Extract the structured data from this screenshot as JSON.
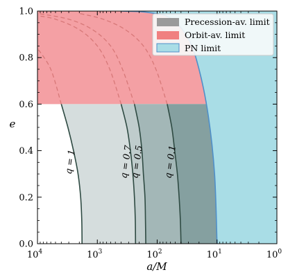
{
  "chart_data": {
    "type": "area",
    "xlabel": "a/M",
    "ylabel": "e",
    "x_scale": "log",
    "x_reversed": true,
    "xlim": [
      10000,
      1
    ],
    "ylim": [
      0,
      1
    ],
    "x_ticks": [
      {
        "value": 10000,
        "base": "10",
        "exp": "4"
      },
      {
        "value": 1000,
        "base": "10",
        "exp": "3"
      },
      {
        "value": 100,
        "base": "10",
        "exp": "2"
      },
      {
        "value": 10,
        "base": "10",
        "exp": "1"
      },
      {
        "value": 1,
        "base": "10",
        "exp": "0"
      }
    ],
    "y_ticks": [
      "0.0",
      "0.2",
      "0.4",
      "0.6",
      "0.8",
      "1.0"
    ],
    "y_tick_values": [
      0,
      0.2,
      0.4,
      0.6,
      0.8,
      1.0
    ],
    "legend_position": "top-right",
    "legend": [
      {
        "label": "Precession-av. limit",
        "color": "#9a9a9a"
      },
      {
        "label": "Orbit-av. limit",
        "color": "#f08080"
      },
      {
        "label": "PN limit",
        "color": "#a9dde6"
      }
    ],
    "orbit_av_limit_e": 0.6,
    "pn_limit": {
      "color": "#a9dde6",
      "edge_color": "#4f8fc8",
      "points": [
        {
          "x": 10,
          "e": 0.0
        },
        {
          "x": 11,
          "e": 0.3
        },
        {
          "x": 14,
          "e": 0.55
        },
        {
          "x": 20,
          "e": 0.75
        },
        {
          "x": 30,
          "e": 0.88
        },
        {
          "x": 60,
          "e": 0.97
        },
        {
          "x": 150,
          "e": 0.995
        },
        {
          "x": 400,
          "e": 1.0
        }
      ]
    },
    "precession_curves": [
      {
        "q_label": "q = 1",
        "fill": "#d5dddd",
        "points": [
          {
            "x": 1800,
            "e": 0.0
          },
          {
            "x": 1820,
            "e": 0.1
          },
          {
            "x": 1900,
            "e": 0.2
          },
          {
            "x": 2100,
            "e": 0.3
          },
          {
            "x": 2500,
            "e": 0.4
          },
          {
            "x": 3100,
            "e": 0.5
          },
          {
            "x": 4000,
            "e": 0.6
          }
        ]
      },
      {
        "q_label": "q = 0.7",
        "fill": "#bfcccc",
        "points": [
          {
            "x": 230,
            "e": 0.0
          },
          {
            "x": 232,
            "e": 0.1
          },
          {
            "x": 240,
            "e": 0.2
          },
          {
            "x": 255,
            "e": 0.3
          },
          {
            "x": 280,
            "e": 0.4
          },
          {
            "x": 320,
            "e": 0.5
          },
          {
            "x": 400,
            "e": 0.6
          }
        ]
      },
      {
        "q_label": "q = 0.5",
        "fill": "#a3b7b7",
        "points": [
          {
            "x": 155,
            "e": 0.0
          },
          {
            "x": 157,
            "e": 0.1
          },
          {
            "x": 160,
            "e": 0.2
          },
          {
            "x": 170,
            "e": 0.3
          },
          {
            "x": 180,
            "e": 0.4
          },
          {
            "x": 200,
            "e": 0.5
          },
          {
            "x": 240,
            "e": 0.6
          }
        ]
      },
      {
        "q_label": "q = 0.1",
        "fill": "#85a0a0",
        "points": [
          {
            "x": 40,
            "e": 0.0
          },
          {
            "x": 41,
            "e": 0.1
          },
          {
            "x": 43,
            "e": 0.2
          },
          {
            "x": 46,
            "e": 0.3
          },
          {
            "x": 51,
            "e": 0.4
          },
          {
            "x": 57,
            "e": 0.5
          },
          {
            "x": 68,
            "e": 0.6
          }
        ]
      }
    ],
    "dashed_curves": [
      [
        {
          "x": 4000,
          "e": 0.6
        },
        {
          "x": 6000,
          "e": 0.75
        },
        {
          "x": 10000,
          "e": 0.84
        }
      ],
      [
        {
          "x": 400,
          "e": 0.6
        },
        {
          "x": 620,
          "e": 0.75
        },
        {
          "x": 1000,
          "e": 0.85
        },
        {
          "x": 2000,
          "e": 0.92
        },
        {
          "x": 5000,
          "e": 0.965
        },
        {
          "x": 10000,
          "e": 0.98
        }
      ],
      [
        {
          "x": 240,
          "e": 0.6
        },
        {
          "x": 380,
          "e": 0.75
        },
        {
          "x": 600,
          "e": 0.85
        },
        {
          "x": 1200,
          "e": 0.92
        },
        {
          "x": 3000,
          "e": 0.965
        },
        {
          "x": 10000,
          "e": 0.99
        }
      ],
      [
        {
          "x": 68,
          "e": 0.6
        },
        {
          "x": 105,
          "e": 0.75
        },
        {
          "x": 170,
          "e": 0.85
        },
        {
          "x": 340,
          "e": 0.92
        },
        {
          "x": 800,
          "e": 0.965
        },
        {
          "x": 2000,
          "e": 0.99
        }
      ]
    ],
    "orbit_fill_color": "#f4a0a4",
    "dashed_color": "#d77878",
    "curve_line_color": "#2e4a42"
  }
}
